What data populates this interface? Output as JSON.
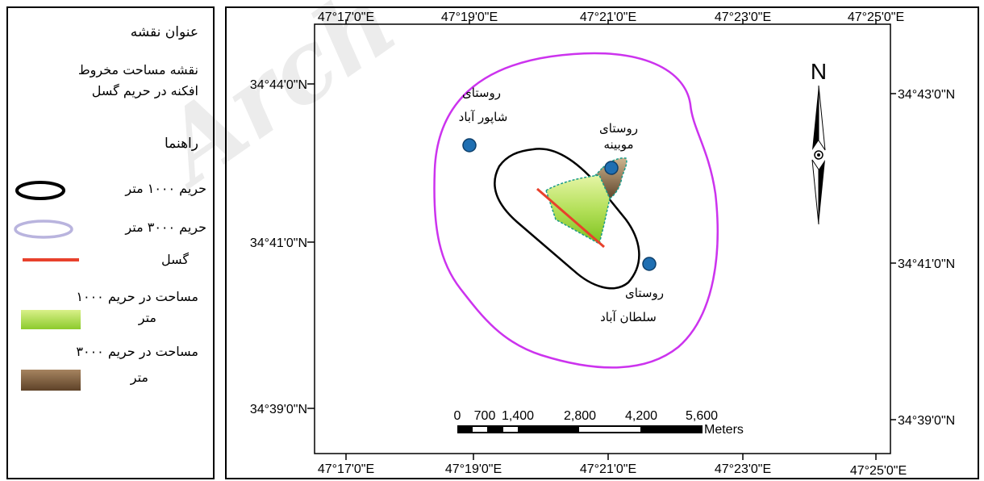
{
  "legend": {
    "title": "عنوان نقشه",
    "subtitle_line1": "نقشه مساحت مخروط",
    "subtitle_line2": "افکنه در حریم گسل",
    "guide": "راهنما",
    "items": [
      {
        "label": "حریم ۱۰۰۰ متر"
      },
      {
        "label": "حریم ۳۰۰۰ متر"
      },
      {
        "label": "گسل"
      },
      {
        "label": "مساحت در حریم ۱۰۰۰",
        "label2": "متر"
      },
      {
        "label": "مساحت در حریم ۳۰۰۰",
        "label2": "متر"
      }
    ]
  },
  "map": {
    "top_axis": [
      "47°17'0\"E",
      "47°19'0\"E",
      "47°21'0\"E",
      "47°23'0\"E",
      "47°25'0\"E"
    ],
    "bottom_axis": [
      "47°17'0\"E",
      "47°19'0\"E",
      "47°21'0\"E",
      "47°23'0\"E",
      "47°25'0\"E"
    ],
    "left_axis": [
      "34°44'0\"N",
      "34°41'0\"N",
      "34°39'0\"N"
    ],
    "right_axis": [
      "34°43'0\"N",
      "34°41'0\"N",
      "34°39'0\"N"
    ],
    "north_label": "N",
    "scale": {
      "ticks": [
        "0",
        "700",
        "1,400",
        "2,800",
        "4,200",
        "5,600"
      ],
      "unit": "Meters"
    },
    "villages": [
      {
        "line1": "روستای",
        "line2": "شاپور آباد"
      },
      {
        "line1": "روستای",
        "line2": "موبینه"
      },
      {
        "line1": "روستای",
        "line2": "سلطان آباد"
      }
    ],
    "watermark": "Arch",
    "colors": {
      "buffer_1000": "#000000",
      "buffer_3000": "#cc33ee",
      "fault": "#e8412c",
      "area_1000": "#9dd43a",
      "area_3000": "#7a5a3a",
      "village": "#1f6fb2"
    }
  }
}
